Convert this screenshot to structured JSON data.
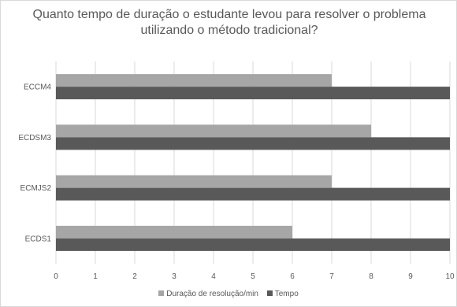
{
  "chart_data": {
    "type": "bar",
    "orientation": "horizontal",
    "title": "Quanto tempo de duração o estudante levou para resolver o problema utilizando o método tradicional?",
    "categories": [
      "ECDS1",
      "ECMJS2",
      "ECDSM3",
      "ECCM4"
    ],
    "series": [
      {
        "name": "Duração de resolução/min",
        "values": [
          6,
          7,
          8,
          7
        ],
        "color": "#a6a6a6"
      },
      {
        "name": "Tempo",
        "values": [
          10,
          10,
          10,
          10
        ],
        "color": "#595959"
      }
    ],
    "xlim": [
      0,
      10
    ],
    "xticks": [
      "0",
      "1",
      "2",
      "3",
      "4",
      "5",
      "6",
      "7",
      "8",
      "9",
      "10"
    ],
    "grid": "vertical",
    "legend_position": "bottom"
  }
}
